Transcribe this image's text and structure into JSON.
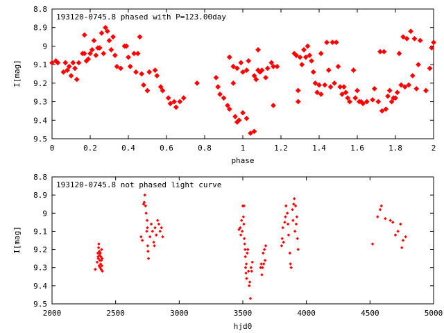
{
  "chart_data": [
    {
      "type": "scatter",
      "title": "193120-0745.8 phased with P=123.00day",
      "xlabel": "phase",
      "ylabel": "I[mag]",
      "xlim": [
        0,
        2
      ],
      "ylim": [
        9.5,
        8.8
      ],
      "y_inverted": true,
      "x_ticks": [
        "0",
        "0.2",
        "0.4",
        "0.6",
        "0.8",
        "1",
        "1.2",
        "1.4",
        "1.6",
        "1.8",
        "2"
      ],
      "y_ticks": [
        "8.8",
        "8.9",
        "9",
        "9.1",
        "9.2",
        "9.3",
        "9.4",
        "9.5"
      ],
      "grid": false,
      "marker_color": "#ff0000",
      "points": [
        [
          0.0,
          9.09
        ],
        [
          0.02,
          9.08
        ],
        [
          0.03,
          9.09
        ],
        [
          0.06,
          9.14
        ],
        [
          0.07,
          9.09
        ],
        [
          0.08,
          9.13
        ],
        [
          0.09,
          9.11
        ],
        [
          0.1,
          9.16
        ],
        [
          0.11,
          9.09
        ],
        [
          0.12,
          9.12
        ],
        [
          0.13,
          9.18
        ],
        [
          0.14,
          9.09
        ],
        [
          0.16,
          9.04
        ],
        [
          0.17,
          9.04
        ],
        [
          0.17,
          8.94
        ],
        [
          0.18,
          9.08
        ],
        [
          0.19,
          9.07
        ],
        [
          0.2,
          9.04
        ],
        [
          0.21,
          9.02
        ],
        [
          0.22,
          8.97
        ],
        [
          0.23,
          9.05
        ],
        [
          0.24,
          9.01
        ],
        [
          0.25,
          9.01
        ],
        [
          0.26,
          8.93
        ],
        [
          0.27,
          9.04
        ],
        [
          0.28,
          8.9
        ],
        [
          0.29,
          8.92
        ],
        [
          0.3,
          8.97
        ],
        [
          0.31,
          9.02
        ],
        [
          0.32,
          8.95
        ],
        [
          0.33,
          9.05
        ],
        [
          0.34,
          9.11
        ],
        [
          0.36,
          9.12
        ],
        [
          0.38,
          9.0
        ],
        [
          0.39,
          9.0
        ],
        [
          0.4,
          9.06
        ],
        [
          0.41,
          9.11
        ],
        [
          0.43,
          9.04
        ],
        [
          0.44,
          9.14
        ],
        [
          0.45,
          9.04
        ],
        [
          0.46,
          8.95
        ],
        [
          0.47,
          9.15
        ],
        [
          0.48,
          9.21
        ],
        [
          0.5,
          9.24
        ],
        [
          0.51,
          9.14
        ],
        [
          0.54,
          9.13
        ],
        [
          0.55,
          9.16
        ],
        [
          0.57,
          9.22
        ],
        [
          0.58,
          9.24
        ],
        [
          0.61,
          9.28
        ],
        [
          0.62,
          9.31
        ],
        [
          0.64,
          9.3
        ],
        [
          0.65,
          9.33
        ],
        [
          0.67,
          9.3
        ],
        [
          0.69,
          9.28
        ],
        [
          0.76,
          9.2
        ],
        [
          0.86,
          9.17
        ],
        [
          0.87,
          9.22
        ],
        [
          0.88,
          9.26
        ],
        [
          0.9,
          9.28
        ],
        [
          0.92,
          9.32
        ],
        [
          0.93,
          9.34
        ],
        [
          0.95,
          9.2
        ],
        [
          0.96,
          9.38
        ],
        [
          0.97,
          9.41
        ],
        [
          0.98,
          9.4
        ],
        [
          1.0,
          9.36
        ],
        [
          1.02,
          9.39
        ],
        [
          0.93,
          9.06
        ],
        [
          0.95,
          9.11
        ],
        [
          0.97,
          9.12
        ],
        [
          0.99,
          9.09
        ],
        [
          1.0,
          9.14
        ],
        [
          1.02,
          9.13
        ],
        [
          1.03,
          9.08
        ],
        [
          1.04,
          9.47
        ],
        [
          1.06,
          9.46
        ],
        [
          1.06,
          9.16
        ],
        [
          1.07,
          9.18
        ],
        [
          1.08,
          9.02
        ],
        [
          1.08,
          9.13
        ],
        [
          1.09,
          9.14
        ],
        [
          1.1,
          9.13
        ],
        [
          1.12,
          9.17
        ],
        [
          1.13,
          9.12
        ],
        [
          1.15,
          9.09
        ],
        [
          1.16,
          9.11
        ],
        [
          1.16,
          9.32
        ],
        [
          1.18,
          9.11
        ],
        [
          1.27,
          9.04
        ],
        [
          1.28,
          9.05
        ],
        [
          1.29,
          9.24
        ],
        [
          1.29,
          9.3
        ],
        [
          1.3,
          9.06
        ],
        [
          1.31,
          9.1
        ],
        [
          1.32,
          9.02
        ],
        [
          1.33,
          9.06
        ],
        [
          1.34,
          9.0
        ],
        [
          1.35,
          9.05
        ],
        [
          1.36,
          9.08
        ],
        [
          1.37,
          9.14
        ],
        [
          1.38,
          9.2
        ],
        [
          1.39,
          9.25
        ],
        [
          1.4,
          9.21
        ],
        [
          1.41,
          9.04
        ],
        [
          1.41,
          9.26
        ],
        [
          1.43,
          9.21
        ],
        [
          1.44,
          8.98
        ],
        [
          1.45,
          9.13
        ],
        [
          1.46,
          9.22
        ],
        [
          1.47,
          8.98
        ],
        [
          1.48,
          9.2
        ],
        [
          1.49,
          8.98
        ],
        [
          1.5,
          9.11
        ],
        [
          1.51,
          9.22
        ],
        [
          1.52,
          9.26
        ],
        [
          1.53,
          9.22
        ],
        [
          1.54,
          9.25
        ],
        [
          1.55,
          9.28
        ],
        [
          1.56,
          9.3
        ],
        [
          1.58,
          9.13
        ],
        [
          1.59,
          9.28
        ],
        [
          1.6,
          9.24
        ],
        [
          1.61,
          9.3
        ],
        [
          1.62,
          9.3
        ],
        [
          1.63,
          9.31
        ],
        [
          1.65,
          9.3
        ],
        [
          1.68,
          9.29
        ],
        [
          1.69,
          9.23
        ],
        [
          1.71,
          9.3
        ],
        [
          1.72,
          9.03
        ],
        [
          1.73,
          9.35
        ],
        [
          1.74,
          9.03
        ],
        [
          1.75,
          9.34
        ],
        [
          1.76,
          9.27
        ],
        [
          1.77,
          9.24
        ],
        [
          1.78,
          9.3
        ],
        [
          1.79,
          9.28
        ],
        [
          1.8,
          9.28
        ],
        [
          1.81,
          9.25
        ],
        [
          1.82,
          9.04
        ],
        [
          1.83,
          9.21
        ],
        [
          1.84,
          8.95
        ],
        [
          1.85,
          9.22
        ],
        [
          1.86,
          8.96
        ],
        [
          1.87,
          9.21
        ],
        [
          1.88,
          8.92
        ],
        [
          1.89,
          9.16
        ],
        [
          1.9,
          8.96
        ],
        [
          1.91,
          9.23
        ],
        [
          1.92,
          9.1
        ],
        [
          1.93,
          8.97
        ],
        [
          1.96,
          9.24
        ],
        [
          1.98,
          9.12
        ],
        [
          1.99,
          9.01
        ],
        [
          2.0,
          8.98
        ]
      ]
    },
    {
      "type": "scatter",
      "title": "193120-0745.8 not phased light curve",
      "xlabel": "hjd0",
      "ylabel": "I[mag]",
      "xlim": [
        2000,
        5000
      ],
      "ylim": [
        9.5,
        8.8
      ],
      "y_inverted": true,
      "x_ticks": [
        "2000",
        "2500",
        "3000",
        "3500",
        "4000",
        "4500",
        "5000"
      ],
      "y_ticks": [
        "8.8",
        "8.9",
        "9",
        "9.1",
        "9.2",
        "9.3",
        "9.4",
        "9.5"
      ],
      "grid": false,
      "marker_color": "#ff0000",
      "points": [
        [
          2340,
          9.31
        ],
        [
          2355,
          9.27
        ],
        [
          2360,
          9.22
        ],
        [
          2362,
          9.24
        ],
        [
          2364,
          9.25
        ],
        [
          2366,
          9.19
        ],
        [
          2368,
          9.17
        ],
        [
          2370,
          9.29
        ],
        [
          2372,
          9.21
        ],
        [
          2374,
          9.23
        ],
        [
          2376,
          9.26
        ],
        [
          2378,
          9.3
        ],
        [
          2380,
          9.22
        ],
        [
          2382,
          9.28
        ],
        [
          2384,
          9.24
        ],
        [
          2386,
          9.31
        ],
        [
          2388,
          9.26
        ],
        [
          2390,
          9.2
        ],
        [
          2392,
          9.29
        ],
        [
          2394,
          9.25
        ],
        [
          2396,
          9.32
        ],
        [
          2700,
          9.13
        ],
        [
          2710,
          9.15
        ],
        [
          2720,
          8.95
        ],
        [
          2725,
          8.94
        ],
        [
          2730,
          8.9
        ],
        [
          2735,
          8.96
        ],
        [
          2740,
          9.0
        ],
        [
          2745,
          9.1
        ],
        [
          2748,
          9.04
        ],
        [
          2750,
          9.08
        ],
        [
          2752,
          9.18
        ],
        [
          2755,
          9.21
        ],
        [
          2758,
          9.25
        ],
        [
          2770,
          9.13
        ],
        [
          2780,
          9.06
        ],
        [
          2790,
          9.1
        ],
        [
          2800,
          9.16
        ],
        [
          2805,
          9.18
        ],
        [
          2810,
          9.08
        ],
        [
          2820,
          9.12
        ],
        [
          2830,
          9.04
        ],
        [
          2840,
          9.06
        ],
        [
          2850,
          9.1
        ],
        [
          2860,
          9.08
        ],
        [
          2870,
          9.13
        ],
        [
          3470,
          9.09
        ],
        [
          3480,
          9.08
        ],
        [
          3485,
          9.12
        ],
        [
          3490,
          9.04
        ],
        [
          3495,
          9.1
        ],
        [
          3500,
          8.96
        ],
        [
          3505,
          9.02
        ],
        [
          3508,
          9.06
        ],
        [
          3510,
          8.96
        ],
        [
          3512,
          9.14
        ],
        [
          3515,
          9.17
        ],
        [
          3518,
          9.2
        ],
        [
          3520,
          9.24
        ],
        [
          3522,
          9.3
        ],
        [
          3525,
          9.33
        ],
        [
          3528,
          9.28
        ],
        [
          3530,
          9.36
        ],
        [
          3535,
          9.22
        ],
        [
          3540,
          9.2
        ],
        [
          3545,
          9.32
        ],
        [
          3550,
          9.4
        ],
        [
          3555,
          9.38
        ],
        [
          3560,
          9.47
        ],
        [
          3565,
          9.3
        ],
        [
          3570,
          9.32
        ],
        [
          3575,
          9.27
        ],
        [
          3640,
          9.3
        ],
        [
          3645,
          9.28
        ],
        [
          3650,
          9.34
        ],
        [
          3655,
          9.3
        ],
        [
          3660,
          9.22
        ],
        [
          3665,
          9.28
        ],
        [
          3670,
          9.2
        ],
        [
          3675,
          9.26
        ],
        [
          3680,
          9.18
        ],
        [
          3805,
          9.18
        ],
        [
          3810,
          9.14
        ],
        [
          3815,
          9.08
        ],
        [
          3820,
          9.16
        ],
        [
          3830,
          9.05
        ],
        [
          3835,
          9.02
        ],
        [
          3840,
          8.96
        ],
        [
          3850,
          9.0
        ],
        [
          3855,
          9.06
        ],
        [
          3860,
          9.12
        ],
        [
          3870,
          9.22
        ],
        [
          3875,
          9.28
        ],
        [
          3880,
          9.3
        ],
        [
          3890,
          8.98
        ],
        [
          3895,
          9.04
        ],
        [
          3900,
          8.95
        ],
        [
          3905,
          8.92
        ],
        [
          3910,
          9.1
        ],
        [
          3915,
          8.96
        ],
        [
          3920,
          9.06
        ],
        [
          3925,
          9.02
        ],
        [
          3930,
          9.14
        ],
        [
          3935,
          9.2
        ],
        [
          4520,
          9.17
        ],
        [
          4560,
          9.02
        ],
        [
          4580,
          8.98
        ],
        [
          4590,
          8.96
        ],
        [
          4620,
          9.03
        ],
        [
          4660,
          9.04
        ],
        [
          4680,
          9.05
        ],
        [
          4700,
          9.12
        ],
        [
          4720,
          9.1
        ],
        [
          4740,
          9.06
        ],
        [
          4750,
          9.19
        ],
        [
          4760,
          9.15
        ],
        [
          4780,
          9.13
        ]
      ]
    }
  ]
}
